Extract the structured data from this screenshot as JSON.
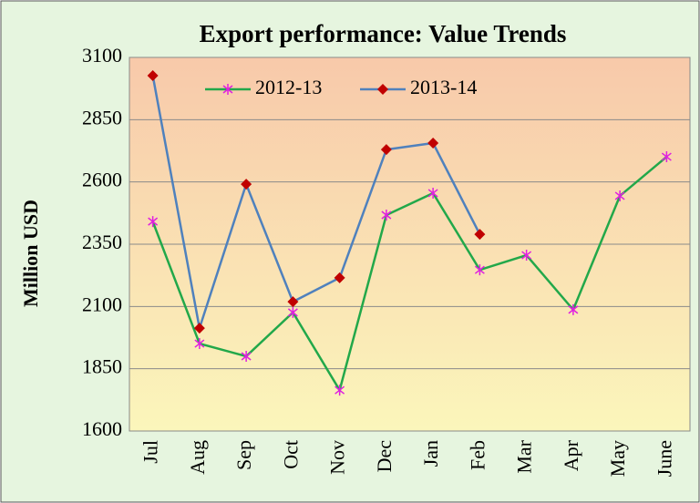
{
  "chart_data": {
    "type": "line",
    "title": "Export performance: Value Trends",
    "ylabel": "Million USD",
    "categories": [
      "Jul",
      "Aug",
      "Sep",
      "Oct",
      "Nov",
      "Dec",
      "Jan",
      "Feb",
      "Mar",
      "Apr",
      "May",
      "June"
    ],
    "series": [
      {
        "name": "2012-13",
        "color": "#22a84a",
        "marker": "star",
        "marker_color": "#e020e0",
        "values": [
          2441,
          1951,
          1900,
          2076,
          1764,
          2467,
          2555,
          2247,
          2306,
          2087,
          2544,
          2701
        ]
      },
      {
        "name": "2013-14",
        "color": "#4f81bd",
        "marker": "diamond",
        "marker_color": "#c00000",
        "values": [
          3027,
          2013,
          2591,
          2119,
          2215,
          2730,
          2756,
          2390,
          null,
          null,
          null,
          null
        ]
      }
    ],
    "ylim": [
      1600,
      3100
    ],
    "yticks": [
      1600,
      1850,
      2100,
      2350,
      2600,
      2850,
      3100
    ],
    "grid": true,
    "legend": "top"
  }
}
